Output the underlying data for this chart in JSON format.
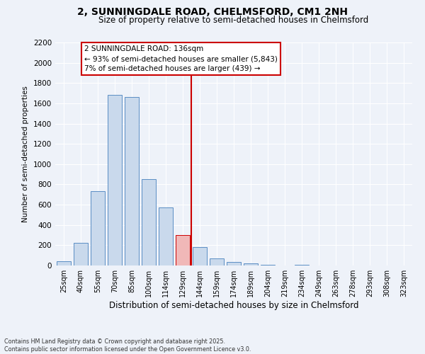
{
  "title": "2, SUNNINGDALE ROAD, CHELMSFORD, CM1 2NH",
  "subtitle": "Size of property relative to semi-detached houses in Chelmsford",
  "xlabel": "Distribution of semi-detached houses by size in Chelmsford",
  "ylabel": "Number of semi-detached properties",
  "categories": [
    "25sqm",
    "40sqm",
    "55sqm",
    "70sqm",
    "85sqm",
    "100sqm",
    "114sqm",
    "129sqm",
    "144sqm",
    "159sqm",
    "174sqm",
    "189sqm",
    "204sqm",
    "219sqm",
    "234sqm",
    "249sqm",
    "263sqm",
    "278sqm",
    "293sqm",
    "308sqm",
    "323sqm"
  ],
  "values": [
    40,
    225,
    730,
    1680,
    1660,
    850,
    570,
    300,
    185,
    70,
    35,
    20,
    10,
    0,
    10,
    0,
    0,
    0,
    0,
    0,
    0
  ],
  "bar_color": "#c9d9ec",
  "bar_edge_color": "#5b8ec4",
  "highlight_index": 7,
  "highlight_bar_color": "#f0b8b8",
  "highlight_bar_edge_color": "#cc0000",
  "vline_color": "#cc0000",
  "annotation_title": "2 SUNNINGDALE ROAD: 136sqm",
  "annotation_line1": "← 93% of semi-detached houses are smaller (5,843)",
  "annotation_line2": "7% of semi-detached houses are larger (439) →",
  "annotation_box_edge_color": "#cc0000",
  "ylim": [
    0,
    2200
  ],
  "yticks": [
    0,
    200,
    400,
    600,
    800,
    1000,
    1200,
    1400,
    1600,
    1800,
    2000,
    2200
  ],
  "background_color": "#eef2f9",
  "grid_color": "#ffffff",
  "footer_line1": "Contains HM Land Registry data © Crown copyright and database right 2025.",
  "footer_line2": "Contains public sector information licensed under the Open Government Licence v3.0."
}
